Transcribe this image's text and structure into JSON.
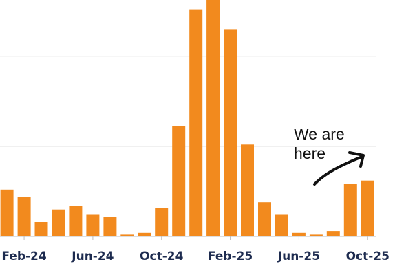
{
  "chart_data": {
    "type": "bar",
    "categories": [
      "Jan-24",
      "Feb-24",
      "Mar-24",
      "Apr-24",
      "May-24",
      "Jun-24",
      "Jul-24",
      "Aug-24",
      "Sep-24",
      "Oct-24",
      "Nov-24",
      "Dec-24",
      "Jan-25",
      "Feb-25",
      "Mar-25",
      "Apr-25",
      "May-25",
      "Jun-25",
      "Jul-25",
      "Aug-25",
      "Sep-25",
      "Oct-25"
    ],
    "x_tick_labels": [
      "Feb-24",
      "Jun-24",
      "Oct-24",
      "Feb-25",
      "Jun-25",
      "Oct-25"
    ],
    "values": [
      26,
      22,
      8,
      15,
      17,
      12,
      11,
      1,
      2,
      16,
      61,
      126,
      133,
      115,
      51,
      19,
      12,
      2,
      1,
      3,
      29,
      31
    ],
    "ylim": [
      0,
      135
    ],
    "gridlines": [
      50,
      100
    ],
    "grid": true,
    "title": "",
    "xlabel": "",
    "ylabel": "",
    "colors": {
      "bar": "#f28a1e",
      "grid": "#d9d9d9",
      "baseline": "#bdbdbd",
      "tick_text": "#1d2b4f",
      "annotation": "#111111"
    },
    "annotation": {
      "lines": [
        "We are",
        "here"
      ],
      "target": "Oct-25",
      "style": "handwritten-arrow"
    }
  }
}
